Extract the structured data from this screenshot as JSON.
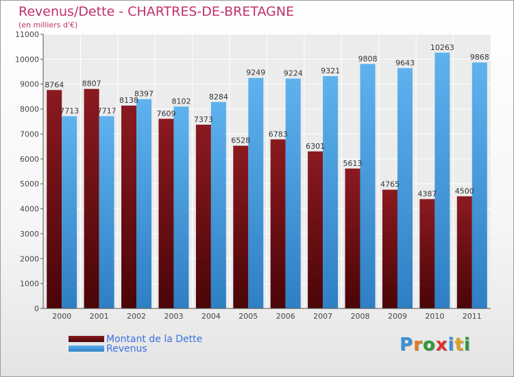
{
  "title": "Revenus/Dette - CHARTRES-DE-BRETAGNE",
  "subtitle": "(en milliers d'€)",
  "logo_text": "Proxiti",
  "colors": {
    "title": "#c0306a",
    "dette": "#6e0f14",
    "revenus": "#4d9fe0",
    "legend_text": "#3a6fe0"
  },
  "chart_data": {
    "type": "bar",
    "categories": [
      "2000",
      "2001",
      "2002",
      "2003",
      "2004",
      "2005",
      "2006",
      "2007",
      "2008",
      "2009",
      "2010",
      "2011"
    ],
    "series": [
      {
        "name": "Montant de la Dette",
        "values": [
          8764,
          8807,
          8138,
          7609,
          7373,
          6528,
          6783,
          6301,
          5613,
          4765,
          4387,
          4500
        ]
      },
      {
        "name": "Revenus",
        "values": [
          7713,
          7717,
          8397,
          8102,
          8284,
          9249,
          9224,
          9321,
          9808,
          9643,
          10263,
          9868
        ]
      }
    ],
    "ylim": [
      0,
      11000
    ],
    "yticks": [
      0,
      1000,
      2000,
      3000,
      4000,
      5000,
      6000,
      7000,
      8000,
      9000,
      10000,
      11000
    ],
    "grid": true,
    "legend_position": "bottom-left"
  }
}
